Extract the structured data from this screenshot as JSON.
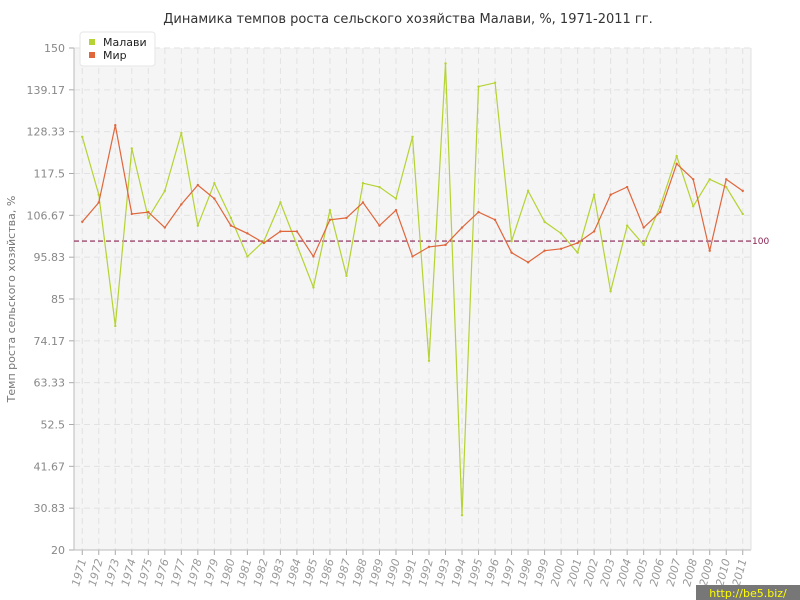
{
  "chart_data": {
    "type": "line",
    "title": "Динамика темпов роста сельского хозяйства Малави, %, 1971-2011 гг.",
    "xlabel": "",
    "ylabel": "Темп роста сельского хозяйства, %",
    "ylim": [
      20,
      150
    ],
    "yticks": [
      "20",
      "30.83",
      "41.67",
      "52.5",
      "63.33",
      "74.17",
      "85",
      "95.83",
      "106.67",
      "117.5",
      "128.33",
      "139.17",
      "150"
    ],
    "categories": [
      "1971",
      "1972",
      "1973",
      "1974",
      "1975",
      "1976",
      "1977",
      "1978",
      "1979",
      "1980",
      "1981",
      "1982",
      "1983",
      "1984",
      "1985",
      "1986",
      "1987",
      "1988",
      "1989",
      "1990",
      "1991",
      "1992",
      "1993",
      "1994",
      "1995",
      "1996",
      "1997",
      "1998",
      "1999",
      "2000",
      "2001",
      "2002",
      "2003",
      "2004",
      "2005",
      "2006",
      "2007",
      "2008",
      "2009",
      "2010",
      "2011"
    ],
    "series": [
      {
        "name": "Малави",
        "color": "#b5d334",
        "values": [
          127,
          112,
          78,
          124,
          106,
          113,
          128,
          104,
          115,
          106,
          96,
          100,
          110,
          99,
          88,
          108,
          91,
          115,
          114,
          111,
          127,
          69,
          146,
          29,
          140,
          141,
          100,
          113,
          105,
          102,
          97,
          112,
          87,
          104,
          99,
          109,
          122,
          109,
          116,
          114,
          107
        ]
      },
      {
        "name": "Мир",
        "color": "#e0663c",
        "values": [
          105,
          110,
          130,
          107,
          107.5,
          103.5,
          109.5,
          114.5,
          111,
          104,
          102,
          99.5,
          102.5,
          102.5,
          96,
          105.5,
          106,
          110,
          104,
          108,
          96,
          98.5,
          99,
          103.5,
          107.5,
          105.5,
          97,
          94.5,
          97.5,
          98,
          99.5,
          102.5,
          112,
          114,
          103.5,
          107.5,
          120,
          116,
          97.5,
          116,
          113
        ]
      }
    ],
    "reference_line": {
      "value": 100,
      "label": "100",
      "color": "#8b2252"
    },
    "grid": true,
    "legend": "top-left"
  },
  "watermark": "http://be5.biz/"
}
